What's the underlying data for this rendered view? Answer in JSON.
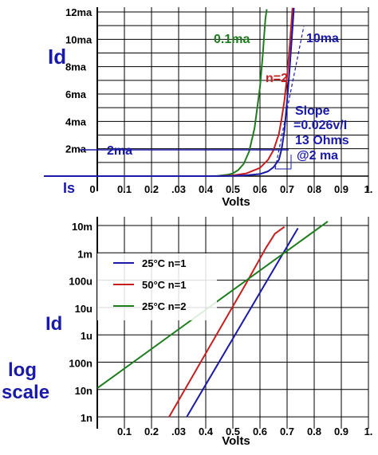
{
  "chart_data": [
    {
      "type": "line",
      "xlabel": "Volts",
      "ylabel": "Id",
      "xlim": [
        0,
        1.0
      ],
      "ylim": [
        0,
        12
      ],
      "x_ticks": [
        "0",
        "0.1",
        "0.2",
        ".03",
        "0.4",
        "0.5",
        "0.6",
        "0.7",
        "0.8",
        "0.9",
        "1."
      ],
      "y_ticks": [
        "12ma",
        "10ma",
        "8ma",
        "6ma",
        "4ma",
        "2ma"
      ],
      "y_tick_values": [
        12,
        10,
        8,
        6,
        4,
        2
      ],
      "baseline_label": "Is",
      "series": [
        {
          "name": "0.1ma",
          "color": "#1e7d1e",
          "x": [
            0.44,
            0.48,
            0.5,
            0.52,
            0.54,
            0.56,
            0.58,
            0.6,
            0.61,
            0.62,
            0.625
          ],
          "y": [
            0.0,
            0.1,
            0.2,
            0.45,
            0.9,
            1.8,
            3.5,
            6.5,
            8.8,
            11.5,
            12.2
          ]
        },
        {
          "name": "n=2",
          "color": "#c81e1e",
          "x": [
            0.45,
            0.5,
            0.55,
            0.6,
            0.63,
            0.65,
            0.67,
            0.68,
            0.69,
            0.7,
            0.71,
            0.72
          ],
          "y": [
            0.0,
            0.05,
            0.2,
            0.6,
            1.2,
            1.9,
            3.1,
            4.2,
            5.5,
            7.3,
            9.6,
            12.3
          ]
        },
        {
          "name": "10ma",
          "color": "#1a1aa8",
          "x": [
            0.2,
            0.4,
            0.5,
            0.55,
            0.6,
            0.63,
            0.65,
            0.67,
            0.68,
            0.69,
            0.7,
            0.71,
            0.72,
            0.725
          ],
          "y": [
            0.0,
            0.0,
            0.02,
            0.06,
            0.15,
            0.35,
            0.65,
            1.2,
            2.0,
            3.3,
            5.5,
            8.0,
            10.8,
            12.3
          ]
        }
      ],
      "annotations": {
        "marker_2ma": "2ma",
        "slope_line1": "Slope",
        "slope_line2": "=0.026v/I",
        "slope_line3": "13 Ohms",
        "slope_line4": "@2 ma"
      },
      "colors": {
        "green": "#1e7d1e",
        "red": "#c81e1e",
        "blue": "#1a1aa8"
      }
    },
    {
      "type": "line",
      "xlabel": "Volts",
      "ylabel": "Id",
      "ylabel2": "log",
      "ylabel3": "scale",
      "scale": "log",
      "xlim": [
        0,
        1.0
      ],
      "x_ticks": [
        "0.1",
        "0.2",
        ".03",
        "0.4",
        "0.5",
        "0.6",
        "0.7",
        "0.8",
        "0.9",
        "1."
      ],
      "y_ticks": [
        "10m",
        "1m",
        "100u",
        "10u",
        "1u",
        "100n",
        "10n",
        "1n"
      ],
      "y_tick_values": [
        -2,
        -3,
        -4,
        -5,
        -6,
        -7,
        -8,
        -9
      ],
      "legend_position": "left",
      "series": [
        {
          "name": "25°C n=1",
          "color": "#1a1aa8",
          "x": [
            0.33,
            0.74
          ],
          "y": [
            -9.0,
            -2.1
          ]
        },
        {
          "name": "50°C n=1",
          "color": "#c81e1e",
          "x": [
            0.265,
            0.55,
            0.62,
            0.655,
            0.69
          ],
          "y": [
            -9.0,
            -4.1,
            -2.85,
            -2.3,
            -2.05
          ]
        },
        {
          "name": "25°C n=2",
          "color": "#1e7d1e",
          "x": [
            0.0,
            0.85
          ],
          "y": [
            -7.95,
            -1.85
          ]
        }
      ]
    }
  ]
}
